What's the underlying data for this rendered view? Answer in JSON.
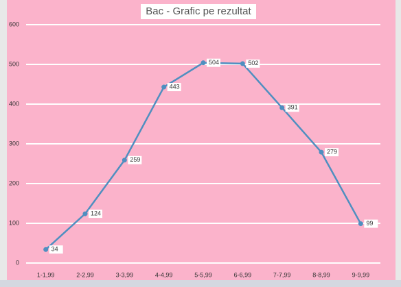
{
  "chart_data": {
    "type": "line",
    "title": "Bac - Grafic pe rezultat",
    "categories": [
      "1-1,99",
      "2-2,99",
      "3-3,99",
      "4-4,99",
      "5-5,99",
      "6-6,99",
      "7-7,99",
      "8-8,99",
      "9-9,99"
    ],
    "series": [
      {
        "color": "#4f8fc0",
        "values": [
          34,
          124,
          259,
          443,
          504,
          502,
          391,
          279,
          99
        ]
      }
    ],
    "ylim": [
      0,
      600
    ],
    "yticks": [
      0,
      100,
      200,
      300,
      400,
      500,
      600
    ],
    "grid": true,
    "data_labels": true
  }
}
